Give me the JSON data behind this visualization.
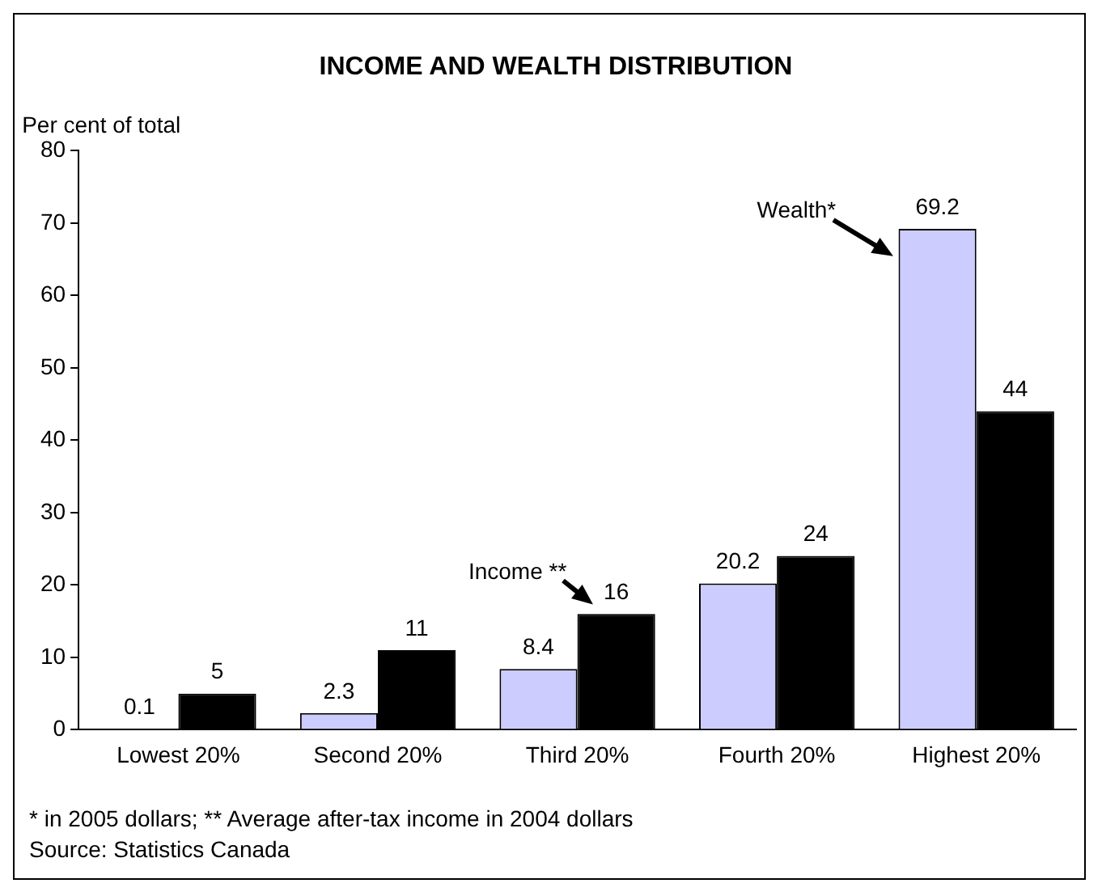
{
  "chart_data": {
    "type": "bar",
    "title": "INCOME AND WEALTH DISTRIBUTION",
    "ylabel": "Per cent of total",
    "categories": [
      "Lowest 20%",
      "Second 20%",
      "Third 20%",
      "Fourth 20%",
      "Highest 20%"
    ],
    "series": [
      {
        "name": "Wealth*",
        "color": "#ccccff",
        "values": [
          0.1,
          2.3,
          8.4,
          20.2,
          69.2
        ]
      },
      {
        "name": "Income **",
        "color": "#000000",
        "values": [
          5,
          11,
          16,
          24,
          44
        ]
      }
    ],
    "ylim": [
      0,
      80
    ],
    "yticks": [
      0,
      10,
      20,
      30,
      40,
      50,
      60,
      70,
      80
    ],
    "grid": false,
    "legend": false,
    "data_labels": true,
    "annotations": [
      "* in 2005 dollars; ** Average after-tax income in 2004 dollars",
      "Source: Statistics Canada"
    ]
  }
}
